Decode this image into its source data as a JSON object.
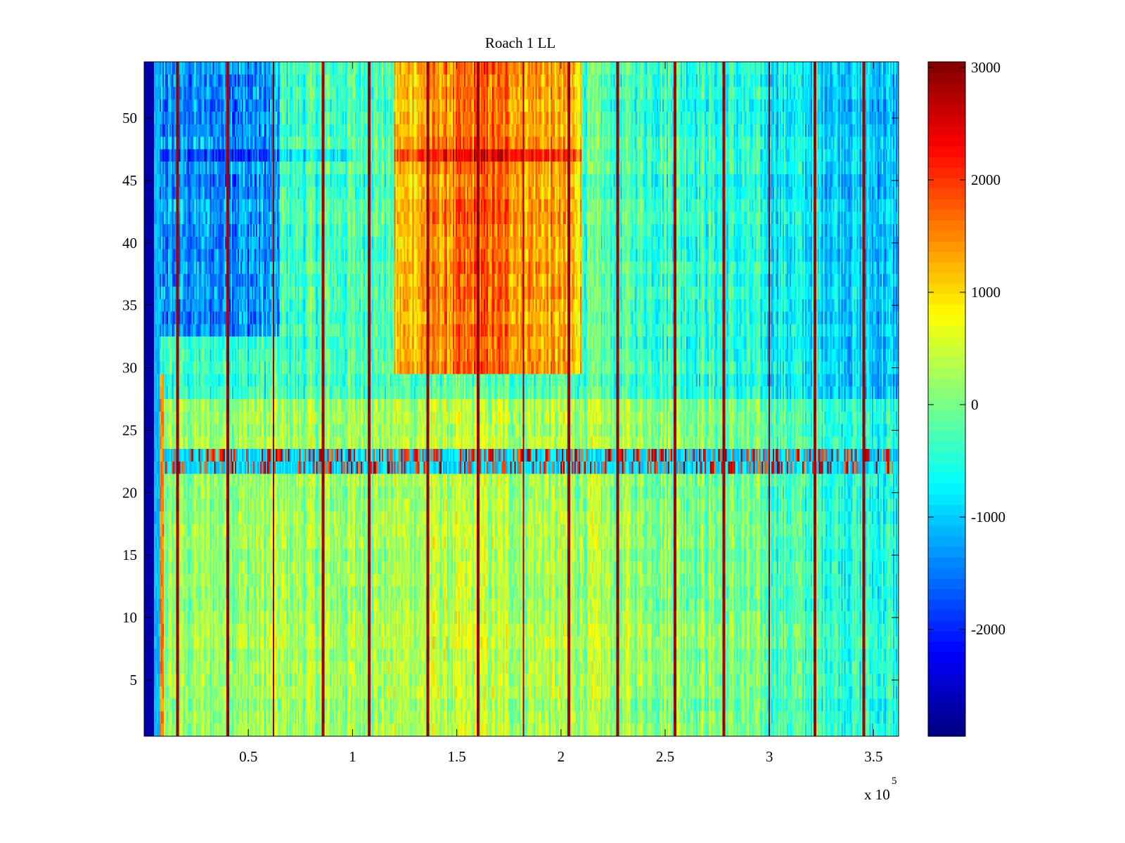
{
  "chart_data": {
    "type": "heatmap",
    "title": "Roach 1 LL",
    "xlabel": "",
    "ylabel": "",
    "x_range": [
      0,
      3.62
    ],
    "x_exponent_label": {
      "base": "x 10",
      "exponent": "5"
    },
    "x_ticks": [
      0.5,
      1,
      1.5,
      2,
      2.5,
      3,
      3.5
    ],
    "x_tick_labels": [
      "0.5",
      "1",
      "1.5",
      "2",
      "2.5",
      "3",
      "3.5"
    ],
    "y_range": [
      0.5,
      54.5
    ],
    "y_ticks": [
      5,
      10,
      15,
      20,
      25,
      30,
      35,
      40,
      45,
      50
    ],
    "y_tick_labels": [
      "5",
      "10",
      "15",
      "20",
      "25",
      "30",
      "35",
      "40",
      "45",
      "50"
    ],
    "rows": 54,
    "colormap": "jet",
    "color_range": [
      -2950,
      3050
    ],
    "colorbar": {
      "ticks": [
        -2000,
        -1000,
        0,
        1000,
        2000,
        3000
      ],
      "tick_labels": [
        "-2000",
        "-1000",
        "0",
        "1000",
        "2000",
        "3000"
      ]
    },
    "bright_vertical_lines_x": [
      0.16,
      0.4,
      0.62,
      0.86,
      1.08,
      1.36,
      1.6,
      1.82,
      2.04,
      2.27,
      2.55,
      2.78,
      3.0,
      3.22,
      3.45
    ],
    "high_region": {
      "x": [
        1.2,
        2.1
      ],
      "y": [
        30,
        54
      ],
      "level": 1300
    },
    "low_region": {
      "x": [
        0.05,
        0.65
      ],
      "y": [
        33,
        54
      ],
      "level": -1300
    },
    "artifact_band_y": [
      21.5,
      23.5
    ],
    "left_edge_level": -2800
  }
}
